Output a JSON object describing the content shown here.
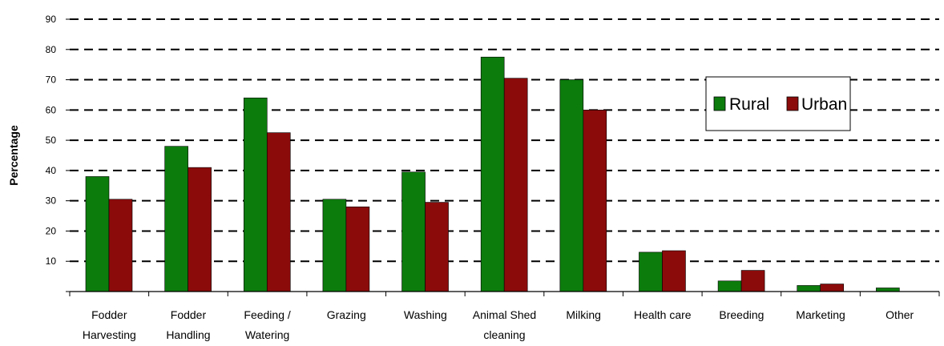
{
  "chart_data": {
    "type": "bar",
    "title": "",
    "xlabel": "",
    "ylabel": "Percentage",
    "ylim": [
      0,
      90
    ],
    "yticks": [
      "",
      "10",
      "20",
      "30",
      "40",
      "50",
      "60",
      "70",
      "80",
      "90"
    ],
    "grid": true,
    "legend_position": "top-right",
    "categories": [
      [
        "Fodder",
        "Harvesting"
      ],
      [
        "Fodder",
        "Handling"
      ],
      [
        "Feeding /",
        "Watering"
      ],
      [
        "Grazing"
      ],
      [
        "Washing"
      ],
      [
        "Animal Shed",
        "cleaning"
      ],
      [
        "Milking"
      ],
      [
        "Health care"
      ],
      [
        "Breeding"
      ],
      [
        "Marketing"
      ],
      [
        "Other"
      ]
    ],
    "series": [
      {
        "name": "Rural",
        "color": "#0c7c0c",
        "values": [
          38,
          48,
          64,
          30.5,
          39.5,
          77.5,
          70,
          13,
          3.5,
          2,
          1.2
        ]
      },
      {
        "name": "Urban",
        "color": "#8b0b0b",
        "values": [
          30.5,
          41,
          52.5,
          28,
          29.5,
          70.5,
          60,
          13.5,
          7,
          2.5,
          0
        ]
      }
    ]
  }
}
